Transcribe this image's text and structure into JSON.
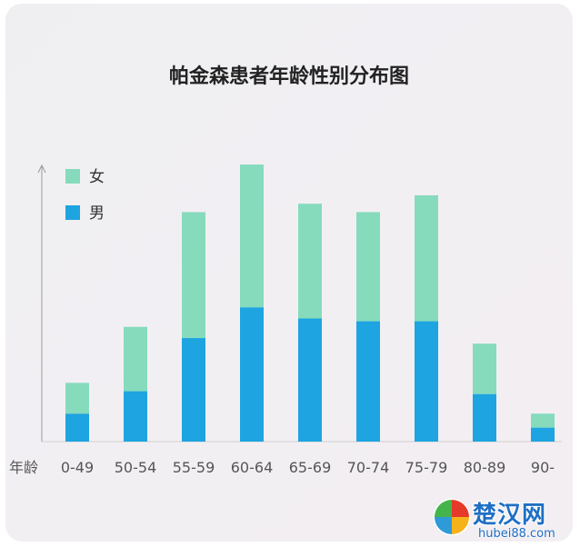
{
  "chart_data": {
    "type": "bar",
    "stacked": true,
    "title": "帕金森患者年龄性别分布图",
    "xlabel": "年龄",
    "ylabel": "",
    "categories": [
      "0-49",
      "50-54",
      "55-59",
      "60-64",
      "65-69",
      "70-74",
      "75-79",
      "80-89",
      "90-"
    ],
    "series": [
      {
        "name": "男",
        "color": "#1ea4e0",
        "values": [
          10,
          18,
          37,
          48,
          44,
          43,
          43,
          17,
          5
        ]
      },
      {
        "name": "女",
        "color": "#86dbbd",
        "values": [
          11,
          23,
          45,
          51,
          41,
          39,
          45,
          18,
          5
        ]
      }
    ],
    "ylim": [
      0,
      100
    ],
    "grid": false,
    "legend": "top-left"
  },
  "watermark": {
    "text": "楚汉网",
    "url": "hubei88.com"
  }
}
